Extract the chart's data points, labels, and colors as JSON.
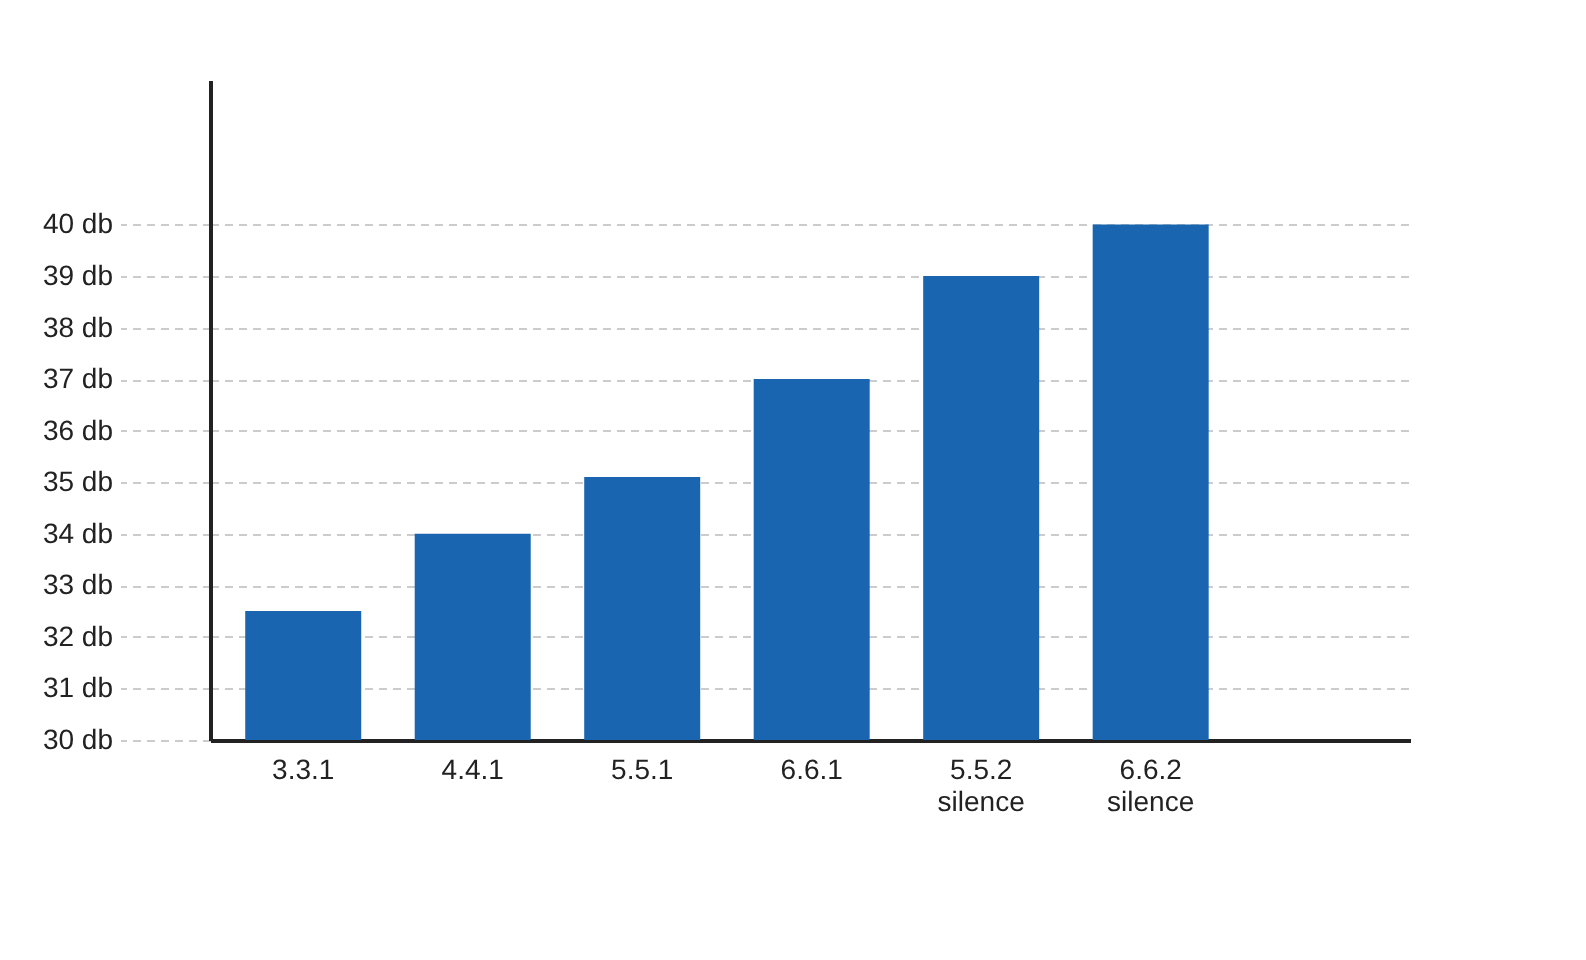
{
  "chart_data": {
    "type": "bar",
    "categories": [
      "3.3.1",
      "4.4.1",
      "5.5.1",
      "6.6.1",
      "5.5.2 silence",
      "6.6.2 silence"
    ],
    "values": [
      32.5,
      34,
      35.1,
      37,
      39,
      40
    ],
    "color": "#1a65b0",
    "ylim": [
      30,
      42.8
    ],
    "yticks": [
      {
        "value": 30,
        "label": "30 db"
      },
      {
        "value": 31,
        "label": "31 db"
      },
      {
        "value": 32,
        "label": "32 db"
      },
      {
        "value": 33,
        "label": "33 db"
      },
      {
        "value": 34,
        "label": "34 db"
      },
      {
        "value": 35,
        "label": "35 db"
      },
      {
        "value": 36,
        "label": "36 db"
      },
      {
        "value": 37,
        "label": "37 db"
      },
      {
        "value": 38,
        "label": "38 db"
      },
      {
        "value": 39,
        "label": "39 db"
      },
      {
        "value": 40,
        "label": "40 db"
      }
    ],
    "grid": "y"
  }
}
